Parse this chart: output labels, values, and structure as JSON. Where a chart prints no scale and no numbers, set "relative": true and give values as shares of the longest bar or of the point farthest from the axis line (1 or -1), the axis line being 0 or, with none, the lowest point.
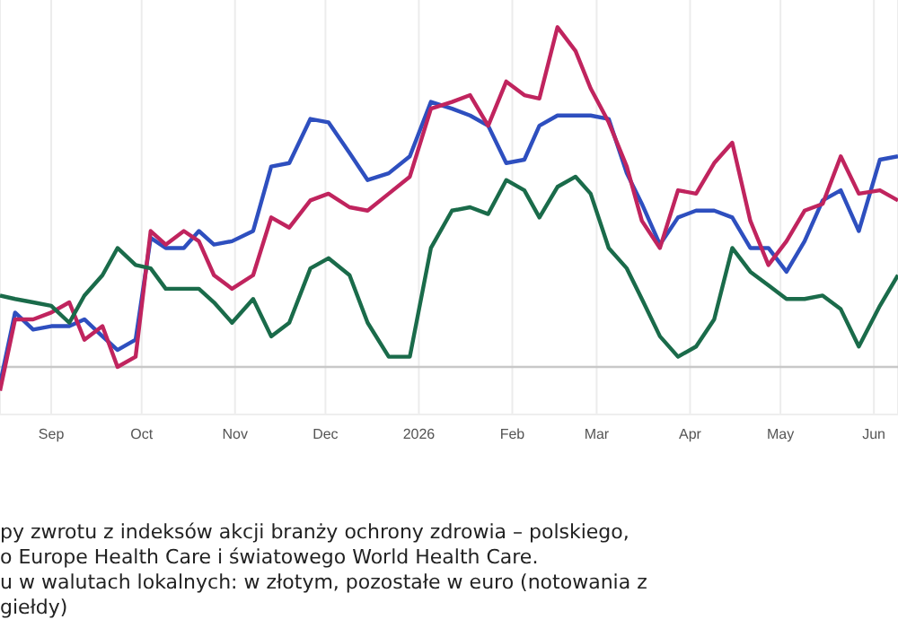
{
  "chart_data": {
    "type": "line",
    "relative": true,
    "x": [
      "2025-08-15",
      "2025-08-20",
      "2025-08-26",
      "2025-09-01",
      "2025-09-07",
      "2025-09-12",
      "2025-09-18",
      "2025-09-23",
      "2025-09-29",
      "2025-10-04",
      "2025-10-09",
      "2025-10-15",
      "2025-10-20",
      "2025-10-25",
      "2025-10-31",
      "2025-11-07",
      "2025-11-13",
      "2025-11-19",
      "2025-11-26",
      "2025-12-02",
      "2025-12-09",
      "2025-12-15",
      "2025-12-22",
      "2025-12-29",
      "2026-01-05",
      "2026-01-12",
      "2026-01-18",
      "2026-01-24",
      "2026-01-30",
      "2026-02-05",
      "2026-02-10",
      "2026-02-16",
      "2026-02-22",
      "2026-02-27",
      "2026-03-05",
      "2026-03-11",
      "2026-03-16",
      "2026-03-22",
      "2026-03-28",
      "2026-04-03",
      "2026-04-09",
      "2026-04-15",
      "2026-04-21",
      "2026-04-27",
      "2026-05-03",
      "2026-05-09",
      "2026-05-15",
      "2026-05-21",
      "2026-05-27",
      "2026-06-03",
      "2026-06-09"
    ],
    "series": [
      {
        "color": "#2e4fbf",
        "values": [
          -0.05,
          0.16,
          0.11,
          0.12,
          0.12,
          0.14,
          0.09,
          0.05,
          0.08,
          0.38,
          0.35,
          0.35,
          0.4,
          0.36,
          0.37,
          0.4,
          0.59,
          0.6,
          0.73,
          0.72,
          0.63,
          0.55,
          0.57,
          0.62,
          0.78,
          0.76,
          0.74,
          0.71,
          0.6,
          0.61,
          0.71,
          0.74,
          0.74,
          0.74,
          0.73,
          0.57,
          0.48,
          0.36,
          0.44,
          0.46,
          0.46,
          0.44,
          0.35,
          0.35,
          0.28,
          0.37,
          0.49,
          0.52,
          0.4,
          0.61,
          0.62
        ]
      },
      {
        "color": "#c0245e",
        "values": [
          -0.07,
          0.14,
          0.14,
          0.16,
          0.19,
          0.08,
          0.12,
          0,
          0.03,
          0.4,
          0.36,
          0.4,
          0.37,
          0.27,
          0.23,
          0.27,
          0.44,
          0.41,
          0.49,
          0.51,
          0.47,
          0.46,
          0.51,
          0.56,
          0.76,
          0.78,
          0.8,
          0.71,
          0.84,
          0.8,
          0.79,
          1,
          0.93,
          0.82,
          0.72,
          0.59,
          0.43,
          0.35,
          0.52,
          0.51,
          0.6,
          0.66,
          0.43,
          0.3,
          0.37,
          0.46,
          0.48,
          0.62,
          0.51,
          0.52,
          0.49
        ]
      },
      {
        "color": "#1a6b4a",
        "values": [
          0.21,
          0.2,
          0.19,
          0.18,
          0.13,
          0.21,
          0.27,
          0.35,
          0.3,
          0.29,
          0.23,
          0.23,
          0.23,
          0.19,
          0.13,
          0.2,
          0.09,
          0.13,
          0.29,
          0.32,
          0.27,
          0.13,
          0.03,
          0.03,
          0.35,
          0.46,
          0.47,
          0.45,
          0.55,
          0.52,
          0.44,
          0.53,
          0.56,
          0.51,
          0.35,
          0.29,
          0.2,
          0.09,
          0.03,
          0.06,
          0.14,
          0.35,
          0.28,
          0.24,
          0.2,
          0.2,
          0.21,
          0.17,
          0.06,
          0.18,
          0.27
        ]
      }
    ],
    "xlim": [
      "2025-08-15",
      "2026-06-09"
    ],
    "xticks": [
      {
        "value": "2025-09-01",
        "label": "Sep"
      },
      {
        "value": "2025-10-01",
        "label": "Oct"
      },
      {
        "value": "2025-11-01",
        "label": "Nov"
      },
      {
        "value": "2025-12-01",
        "label": "Dec"
      },
      {
        "value": "2026-01-01",
        "label": "2026"
      },
      {
        "value": "2026-02-01",
        "label": "Feb"
      },
      {
        "value": "2026-03-01",
        "label": "Mar"
      },
      {
        "value": "2026-04-01",
        "label": "Apr"
      },
      {
        "value": "2026-05-01",
        "label": "May"
      },
      {
        "value": "2026-06-01",
        "label": "Jun"
      }
    ],
    "grid": "x",
    "ref_lines": [
      {
        "axis": "y",
        "value": 0,
        "color": "#c8c8c8"
      }
    ],
    "tick_labels": "x",
    "marker": "none",
    "line_style": "solid",
    "annotations": [
      "py zwrotu z indeksów akcji branży ochrony zdrowia – polskiego,",
      "o Europe Health Care i światowego World Health Care.",
      "u w walutach lokalnych: w złotym, pozostałe w euro (notowania z",
      "giełdy)"
    ]
  }
}
